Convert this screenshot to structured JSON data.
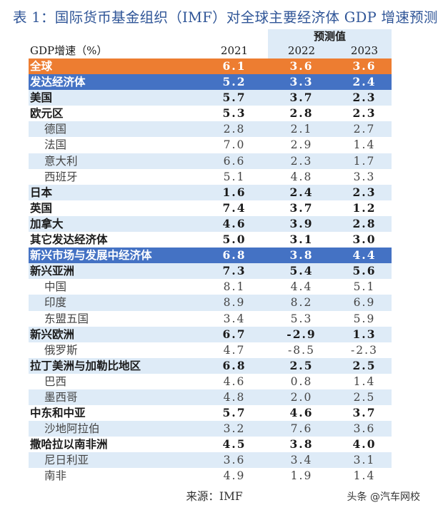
{
  "title": "表 1：国际货币基金组织（IMF）对全球主要经济体 GDP 增速预测",
  "header": {
    "label": "GDP增速（%）",
    "forecast_label": "预测值",
    "years": [
      "2021",
      "2022",
      "2023"
    ]
  },
  "colors": {
    "orange": "#ed7d31",
    "blue": "#4472c4",
    "stripe": "#deebf7",
    "title": "#2f5597"
  },
  "rows": [
    {
      "label": "全球",
      "values": [
        "6.1",
        "3.6",
        "3.6"
      ],
      "style": "orange"
    },
    {
      "label": "发达经济体",
      "values": [
        "5.2",
        "3.3",
        "2.4"
      ],
      "style": "blue"
    },
    {
      "label": "美国",
      "values": [
        "5.7",
        "3.7",
        "2.3"
      ],
      "style": "bold"
    },
    {
      "label": "欧元区",
      "values": [
        "5.3",
        "2.8",
        "2.3"
      ],
      "style": "bold"
    },
    {
      "label": "德国",
      "values": [
        "2.8",
        "2.1",
        "2.7"
      ],
      "style": "sub"
    },
    {
      "label": "法国",
      "values": [
        "7.0",
        "2.9",
        "1.4"
      ],
      "style": "sub"
    },
    {
      "label": "意大利",
      "values": [
        "6.6",
        "2.3",
        "1.7"
      ],
      "style": "sub"
    },
    {
      "label": "西班牙",
      "values": [
        "5.1",
        "4.8",
        "3.3"
      ],
      "style": "sub"
    },
    {
      "label": "日本",
      "values": [
        "1.6",
        "2.4",
        "2.3"
      ],
      "style": "bold"
    },
    {
      "label": "英国",
      "values": [
        "7.4",
        "3.7",
        "1.2"
      ],
      "style": "bold"
    },
    {
      "label": "加拿大",
      "values": [
        "4.6",
        "3.9",
        "2.8"
      ],
      "style": "bold"
    },
    {
      "label": "其它发达经济体",
      "values": [
        "5.0",
        "3.1",
        "3.0"
      ],
      "style": "bold"
    },
    {
      "label": "新兴市场与发展中经济体",
      "values": [
        "6.8",
        "3.8",
        "4.4"
      ],
      "style": "blue"
    },
    {
      "label": "新兴亚洲",
      "values": [
        "7.3",
        "5.4",
        "5.6"
      ],
      "style": "bold"
    },
    {
      "label": "中国",
      "values": [
        "8.1",
        "4.4",
        "5.1"
      ],
      "style": "sub"
    },
    {
      "label": "印度",
      "values": [
        "8.9",
        "8.2",
        "6.9"
      ],
      "style": "sub"
    },
    {
      "label": "东盟五国",
      "values": [
        "3.4",
        "5.3",
        "5.9"
      ],
      "style": "sub"
    },
    {
      "label": "新兴欧洲",
      "values": [
        "6.7",
        "-2.9",
        "1.3"
      ],
      "style": "bold"
    },
    {
      "label": "俄罗斯",
      "values": [
        "4.7",
        "-8.5",
        "-2.3"
      ],
      "style": "sub"
    },
    {
      "label": "拉丁美洲与加勒比地区",
      "values": [
        "6.8",
        "2.5",
        "2.5"
      ],
      "style": "bold"
    },
    {
      "label": "巴西",
      "values": [
        "4.6",
        "0.8",
        "1.4"
      ],
      "style": "sub"
    },
    {
      "label": "墨西哥",
      "values": [
        "4.8",
        "2.0",
        "2.5"
      ],
      "style": "sub"
    },
    {
      "label": "中东和中亚",
      "values": [
        "5.7",
        "4.6",
        "3.7"
      ],
      "style": "bold"
    },
    {
      "label": "沙地阿拉伯",
      "values": [
        "3.2",
        "7.6",
        "3.6"
      ],
      "style": "sub"
    },
    {
      "label": "撒哈拉以南非洲",
      "values": [
        "4.5",
        "3.8",
        "4.0"
      ],
      "style": "bold"
    },
    {
      "label": "尼日利亚",
      "values": [
        "3.6",
        "3.4",
        "3.1"
      ],
      "style": "sub"
    },
    {
      "label": "南非",
      "values": [
        "4.9",
        "1.9",
        "1.4"
      ],
      "style": "sub"
    }
  ],
  "source": "来源：IMF",
  "watermark": "头条 @汽车网校"
}
